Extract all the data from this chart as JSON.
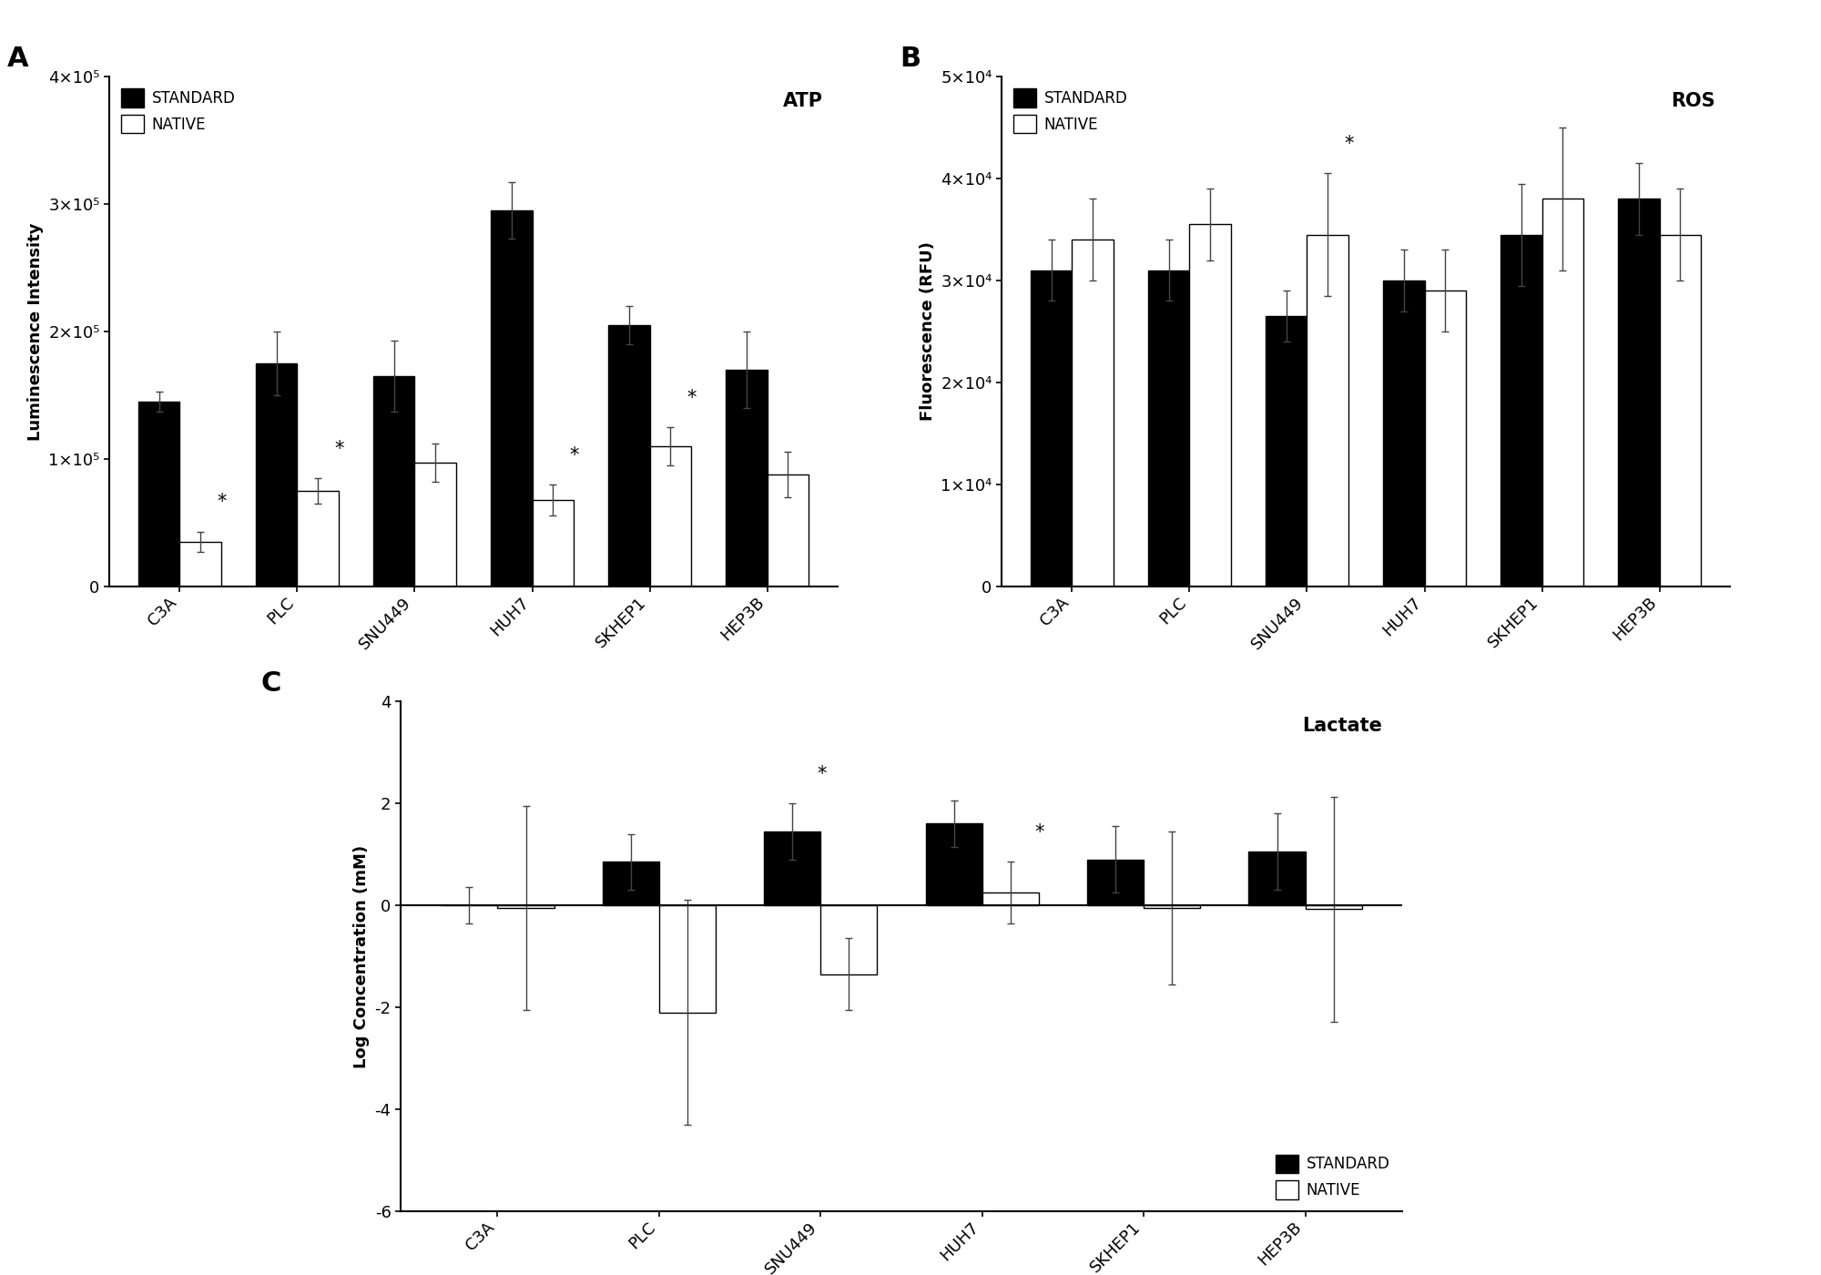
{
  "categories": [
    "C3A",
    "PLC",
    "SNU449",
    "HUH7",
    "SKHEP1",
    "HEP3B"
  ],
  "atp_standard": [
    145000,
    175000,
    165000,
    295000,
    205000,
    170000
  ],
  "atp_standard_err": [
    8000,
    25000,
    28000,
    22000,
    15000,
    30000
  ],
  "atp_native": [
    35000,
    75000,
    97000,
    68000,
    110000,
    88000
  ],
  "atp_native_err": [
    8000,
    10000,
    15000,
    12000,
    15000,
    18000
  ],
  "atp_star_native": [
    true,
    true,
    false,
    true,
    true,
    false
  ],
  "atp_ylim": [
    0,
    400000
  ],
  "atp_yticks": [
    0,
    100000,
    200000,
    300000,
    400000
  ],
  "atp_ytick_labels": [
    "0",
    "1×10⁵",
    "2×10⁵",
    "3×10⁵",
    "4×10⁵"
  ],
  "atp_ylabel": "Luminescence Intensity",
  "atp_title": "ATP",
  "ros_standard": [
    31000,
    31000,
    26500,
    30000,
    34500,
    38000
  ],
  "ros_standard_err": [
    3000,
    3000,
    2500,
    3000,
    5000,
    3500
  ],
  "ros_native": [
    34000,
    35500,
    34500,
    29000,
    38000,
    34500
  ],
  "ros_native_err": [
    4000,
    3500,
    6000,
    4000,
    7000,
    4500
  ],
  "ros_star_native": [
    false,
    false,
    true,
    false,
    false,
    false
  ],
  "ros_ylim": [
    0,
    50000
  ],
  "ros_yticks": [
    0,
    10000,
    20000,
    30000,
    40000,
    50000
  ],
  "ros_ytick_labels": [
    "0",
    "1×10⁴",
    "2×10⁴",
    "3×10⁴",
    "4×10⁴",
    "5×10⁴"
  ],
  "ros_ylabel": "Fluorescence (RFU)",
  "ros_title": "ROS",
  "lac_standard": [
    0.0,
    0.85,
    1.45,
    1.6,
    0.9,
    1.05
  ],
  "lac_standard_err": [
    0.35,
    0.55,
    0.55,
    0.45,
    0.65,
    0.75
  ],
  "lac_native": [
    -0.05,
    -2.1,
    -1.35,
    0.25,
    -0.05,
    -0.08
  ],
  "lac_native_err": [
    2.0,
    2.2,
    0.7,
    0.6,
    1.5,
    2.2
  ],
  "lac_star_native": [
    false,
    false,
    false,
    true,
    false,
    false
  ],
  "lac_star_standard": [
    false,
    false,
    true,
    false,
    false,
    false
  ],
  "lac_ylim": [
    -6,
    4
  ],
  "lac_yticks": [
    -6,
    -4,
    -2,
    0,
    2,
    4
  ],
  "lac_ytick_labels": [
    "-6",
    "-4",
    "-2",
    "0",
    "2",
    "4"
  ],
  "lac_ylabel": "Log Concentration (mM)",
  "lac_title": "Lactate",
  "bar_width": 0.35,
  "standard_color": "#000000",
  "native_color": "#ffffff",
  "edge_color": "#000000",
  "background_color": "#ffffff"
}
